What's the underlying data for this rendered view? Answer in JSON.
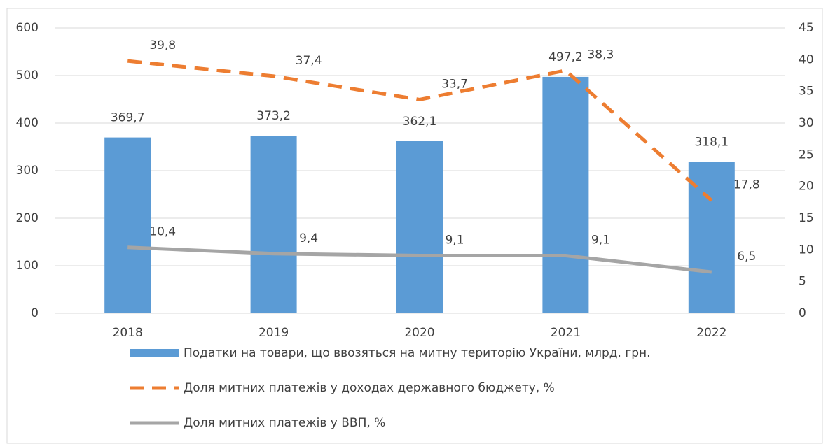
{
  "chart_data": {
    "type": "bar",
    "categories": [
      "2018",
      "2019",
      "2020",
      "2021",
      "2022"
    ],
    "series": [
      {
        "name": "Податки на товари, що ввозяться на митну територію України, млрд. грн.",
        "type": "bar",
        "color": "#5b9bd5",
        "values": [
          369.7,
          373.2,
          362.1,
          497.2,
          318.1
        ],
        "value_labels": [
          "369,7",
          "373,2",
          "362,1",
          "497,2",
          "318,1"
        ]
      },
      {
        "name": "Доля митних платежів у доходах державного бюджету, %",
        "type": "line",
        "dash": true,
        "axis": "y2",
        "color": "#ed7d31",
        "values": [
          39.8,
          37.4,
          33.7,
          38.3,
          17.8
        ],
        "value_labels": [
          "39,8",
          "37,4",
          "33,7",
          "38,3",
          "17,8"
        ]
      },
      {
        "name": "Доля митних платежів у ВВП, %",
        "type": "line",
        "dash": false,
        "axis": "y2",
        "color": "#a5a5a5",
        "values": [
          10.4,
          9.4,
          9.1,
          9.1,
          6.5
        ],
        "value_labels": [
          "10,4",
          "9,4",
          "9,1",
          "9,1",
          "6,5"
        ]
      }
    ],
    "ylim": [
      0,
      600
    ],
    "yticks": [
      0,
      100,
      200,
      300,
      400,
      500,
      600
    ],
    "y2lim": [
      0,
      45
    ],
    "y2ticks": [
      0,
      5,
      10,
      15,
      20,
      25,
      30,
      35,
      40,
      45
    ],
    "grid": true
  }
}
